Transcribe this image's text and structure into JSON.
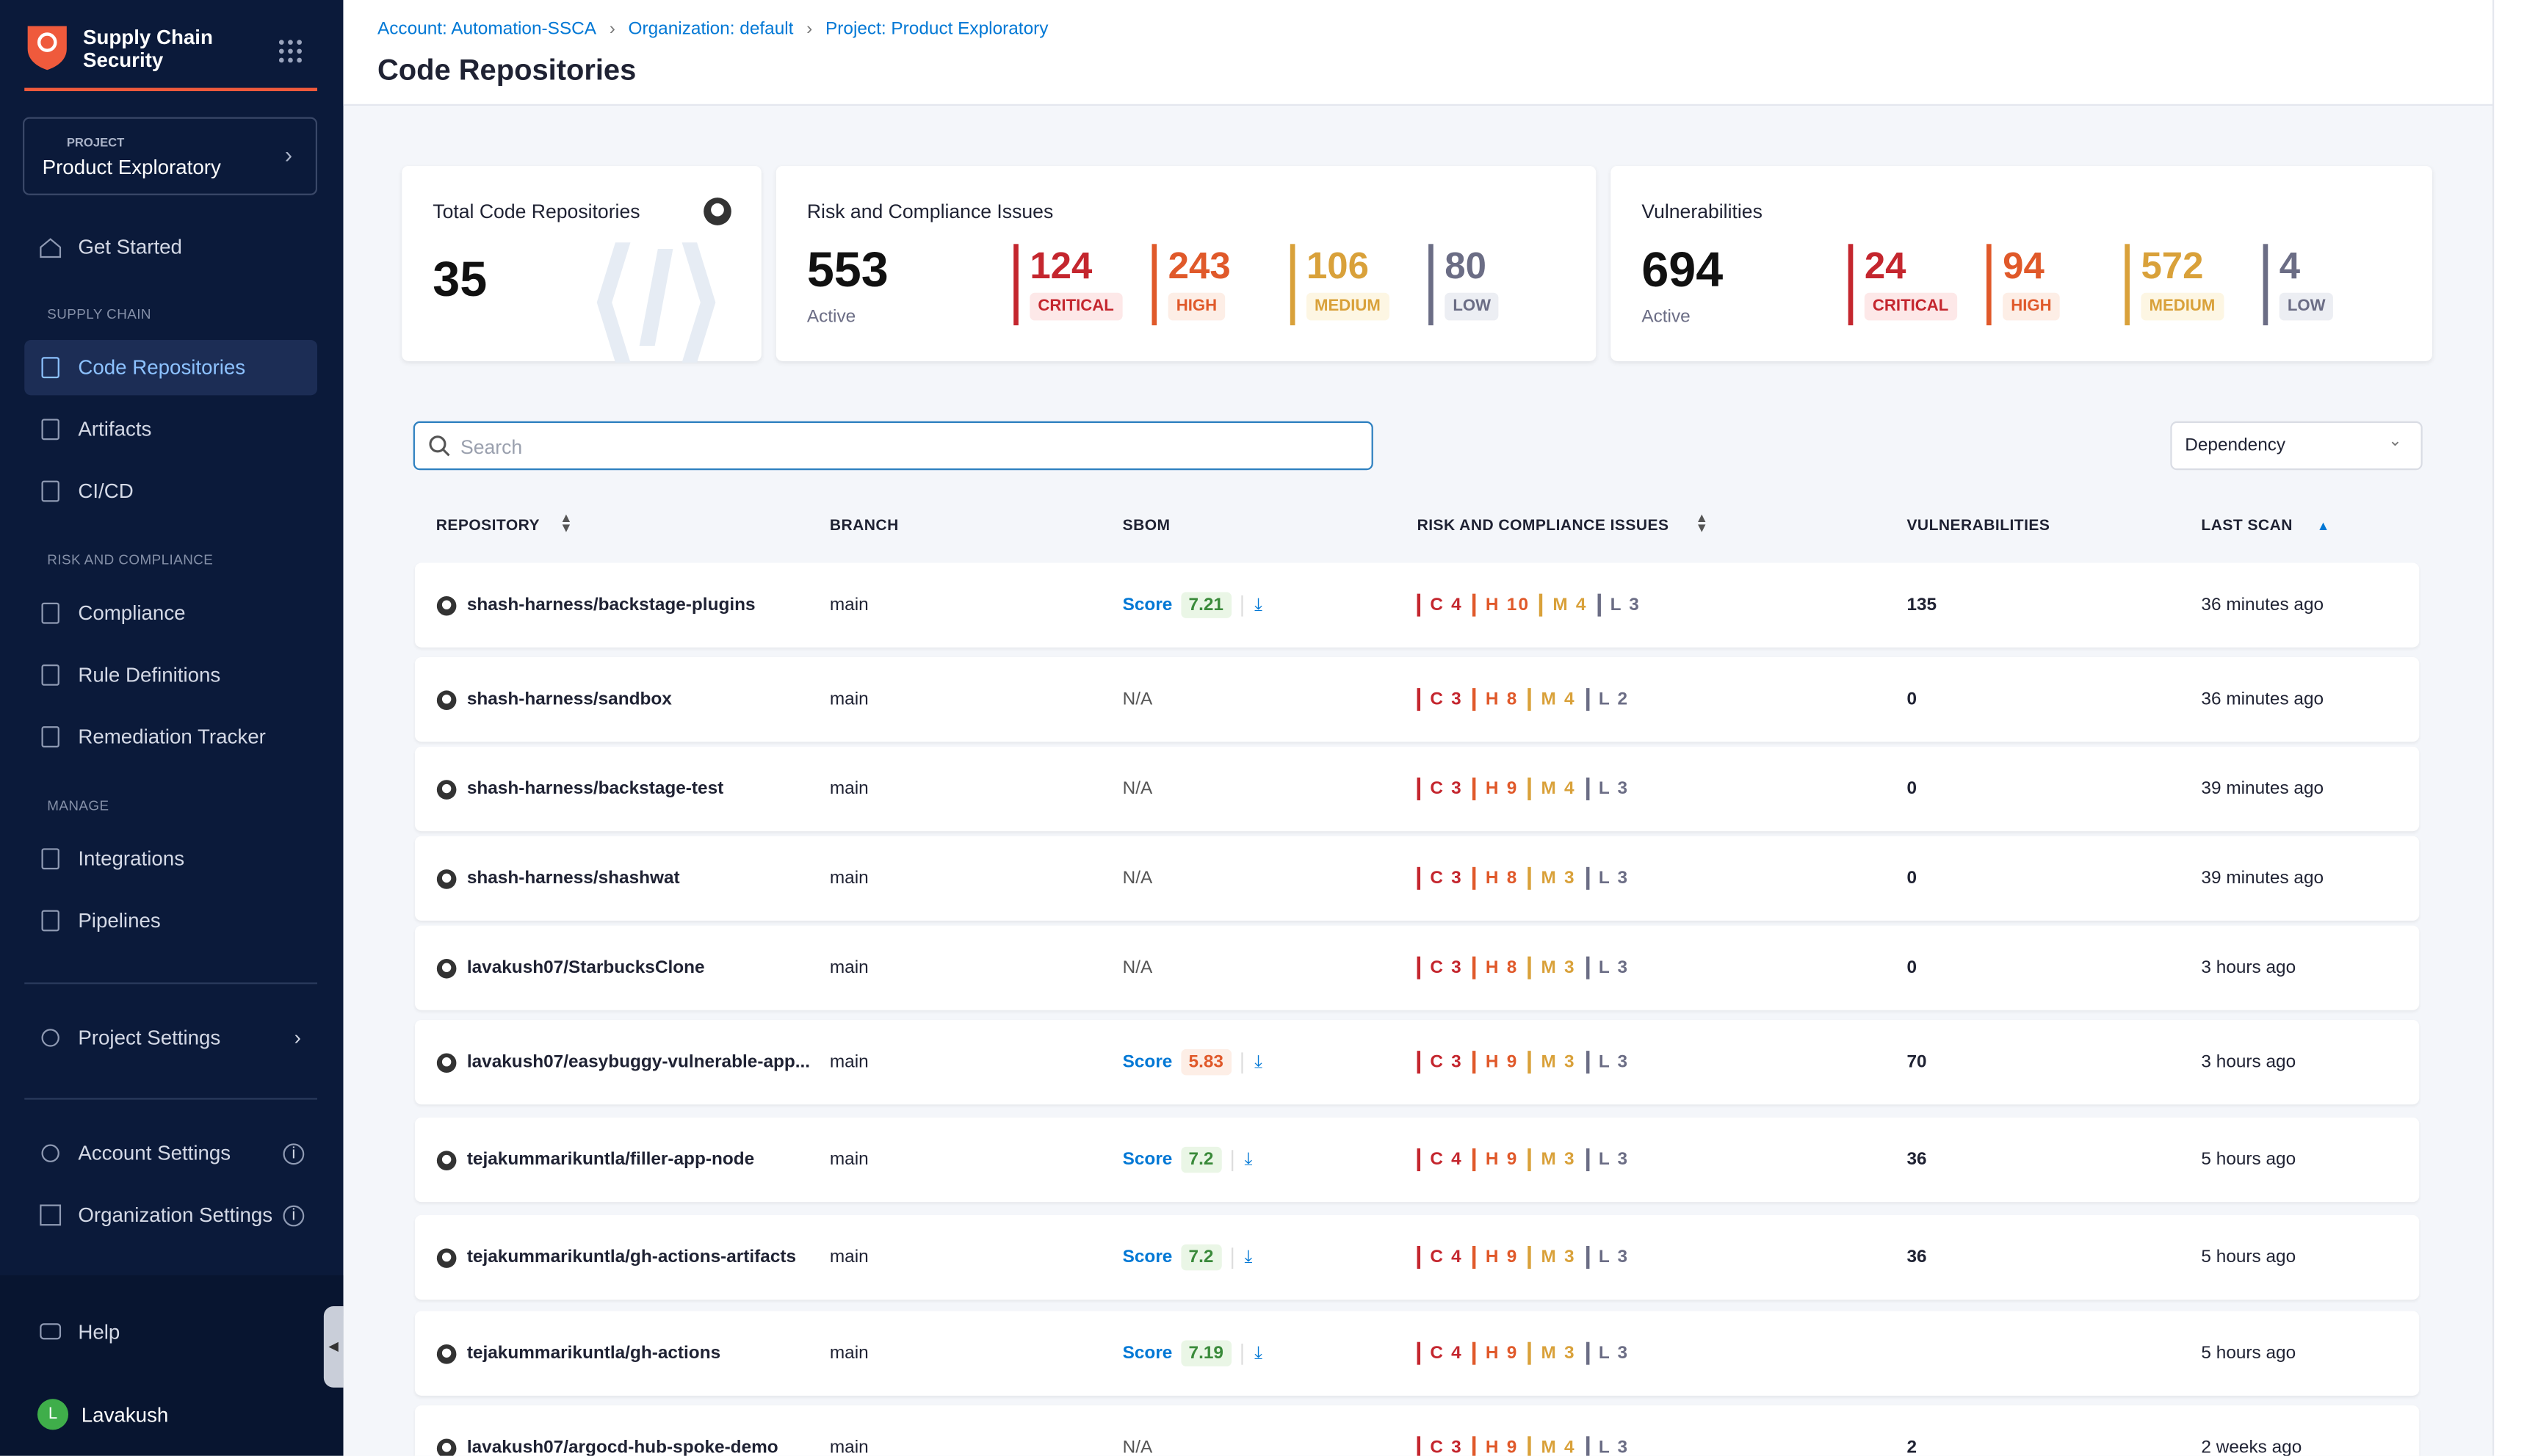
{
  "sidebar": {
    "module_title": "Supply Chain Security",
    "project_label": "PROJECT",
    "project_name": "Product Exploratory",
    "get_started": "Get Started",
    "sections": [
      {
        "title": "SUPPLY CHAIN",
        "items": [
          "Code Repositories",
          "Artifacts",
          "CI/CD"
        ]
      },
      {
        "title": "RISK AND COMPLIANCE",
        "items": [
          "Compliance",
          "Rule Definitions",
          "Remediation Tracker"
        ]
      },
      {
        "title": "MANAGE",
        "items": [
          "Integrations",
          "Pipelines"
        ]
      }
    ],
    "project_settings": "Project Settings",
    "account_settings": "Account Settings",
    "organization_settings": "Organization Settings",
    "help": "Help",
    "user_initial": "L",
    "user_name": "Lavakush"
  },
  "header": {
    "breadcrumbs": [
      "Account: Automation-SSCA",
      "Organization: default",
      "Project: Product Exploratory"
    ],
    "title": "Code Repositories"
  },
  "cards": {
    "total": {
      "title": "Total Code Repositories",
      "value": 35
    },
    "risk": {
      "title": "Risk and Compliance Issues",
      "value": 553,
      "subtitle": "Active",
      "breakdown": [
        {
          "value": 124,
          "label": "CRITICAL"
        },
        {
          "value": 243,
          "label": "HIGH"
        },
        {
          "value": 106,
          "label": "MEDIUM"
        },
        {
          "value": 80,
          "label": "LOW"
        }
      ]
    },
    "vulnerabilities": {
      "title": "Vulnerabilities",
      "value": 694,
      "subtitle": "Active",
      "breakdown": [
        {
          "value": 24,
          "label": "CRITICAL"
        },
        {
          "value": 94,
          "label": "HIGH"
        },
        {
          "value": 572,
          "label": "MEDIUM"
        },
        {
          "value": 4,
          "label": "LOW"
        }
      ]
    }
  },
  "toolbar": {
    "search_placeholder": "Search",
    "filter": "Dependency"
  },
  "table": {
    "columns": [
      "REPOSITORY",
      "BRANCH",
      "SBOM",
      "RISK AND COMPLIANCE ISSUES",
      "VULNERABILITIES",
      "LAST SCAN"
    ],
    "rows": [
      {
        "repository": "shash-harness/backstage-plugins",
        "branch": "main",
        "sbom": {
          "label": "Score",
          "score": "7.21"
        },
        "issues": [
          "C 4",
          "H 10",
          "M 4",
          "L 3"
        ],
        "vulnerabilities": 135,
        "last_scan": "36 minutes ago"
      },
      {
        "repository": "shash-harness/sandbox",
        "branch": "main",
        "sbom": "N/A",
        "issues": [
          "C 3",
          "H 8",
          "M 4",
          "L 2"
        ],
        "vulnerabilities": 0,
        "last_scan": "36 minutes ago"
      },
      {
        "repository": "shash-harness/backstage-test",
        "branch": "main",
        "sbom": "N/A",
        "issues": [
          "C 3",
          "H 9",
          "M 4",
          "L 3"
        ],
        "vulnerabilities": 0,
        "last_scan": "39 minutes ago"
      },
      {
        "repository": "shash-harness/shashwat",
        "branch": "main",
        "sbom": "N/A",
        "issues": [
          "C 3",
          "H 8",
          "M 3",
          "L 3"
        ],
        "vulnerabilities": 0,
        "last_scan": "39 minutes ago"
      },
      {
        "repository": "lavakush07/StarbucksClone",
        "branch": "main",
        "sbom": "N/A",
        "issues": [
          "C 3",
          "H 8",
          "M 3",
          "L 3"
        ],
        "vulnerabilities": 0,
        "last_scan": "3 hours ago"
      },
      {
        "repository": "lavakush07/easybuggy-vulnerable-app...",
        "branch": "main",
        "sbom": {
          "label": "Score",
          "score": "5.83"
        },
        "issues": [
          "C 3",
          "H 9",
          "M 3",
          "L 3"
        ],
        "vulnerabilities": 70,
        "last_scan": "3 hours ago"
      },
      {
        "repository": "tejakummarikuntla/filler-app-node",
        "branch": "main",
        "sbom": {
          "label": "Score",
          "score": "7.2"
        },
        "issues": [
          "C 4",
          "H 9",
          "M 3",
          "L 3"
        ],
        "vulnerabilities": 36,
        "last_scan": "5 hours ago"
      },
      {
        "repository": "tejakummarikuntla/gh-actions-artifacts",
        "branch": "main",
        "sbom": {
          "label": "Score",
          "score": "7.2"
        },
        "issues": [
          "C 4",
          "H 9",
          "M 3",
          "L 3"
        ],
        "vulnerabilities": 36,
        "last_scan": "5 hours ago"
      },
      {
        "repository": "tejakummarikuntla/gh-actions",
        "branch": "main",
        "sbom": {
          "label": "Score",
          "score": "7.19"
        },
        "issues": [
          "C 4",
          "H 9",
          "M 3",
          "L 3"
        ],
        "last_scan": "5 hours ago"
      },
      {
        "repository": "lavakush07/argocd-hub-spoke-demo",
        "branch": "main",
        "sbom": "N/A",
        "issues": [
          "C 3",
          "H 9",
          "M 4",
          "L 3"
        ],
        "vulnerabilities": 2,
        "last_scan": "2 weeks ago"
      }
    ]
  }
}
